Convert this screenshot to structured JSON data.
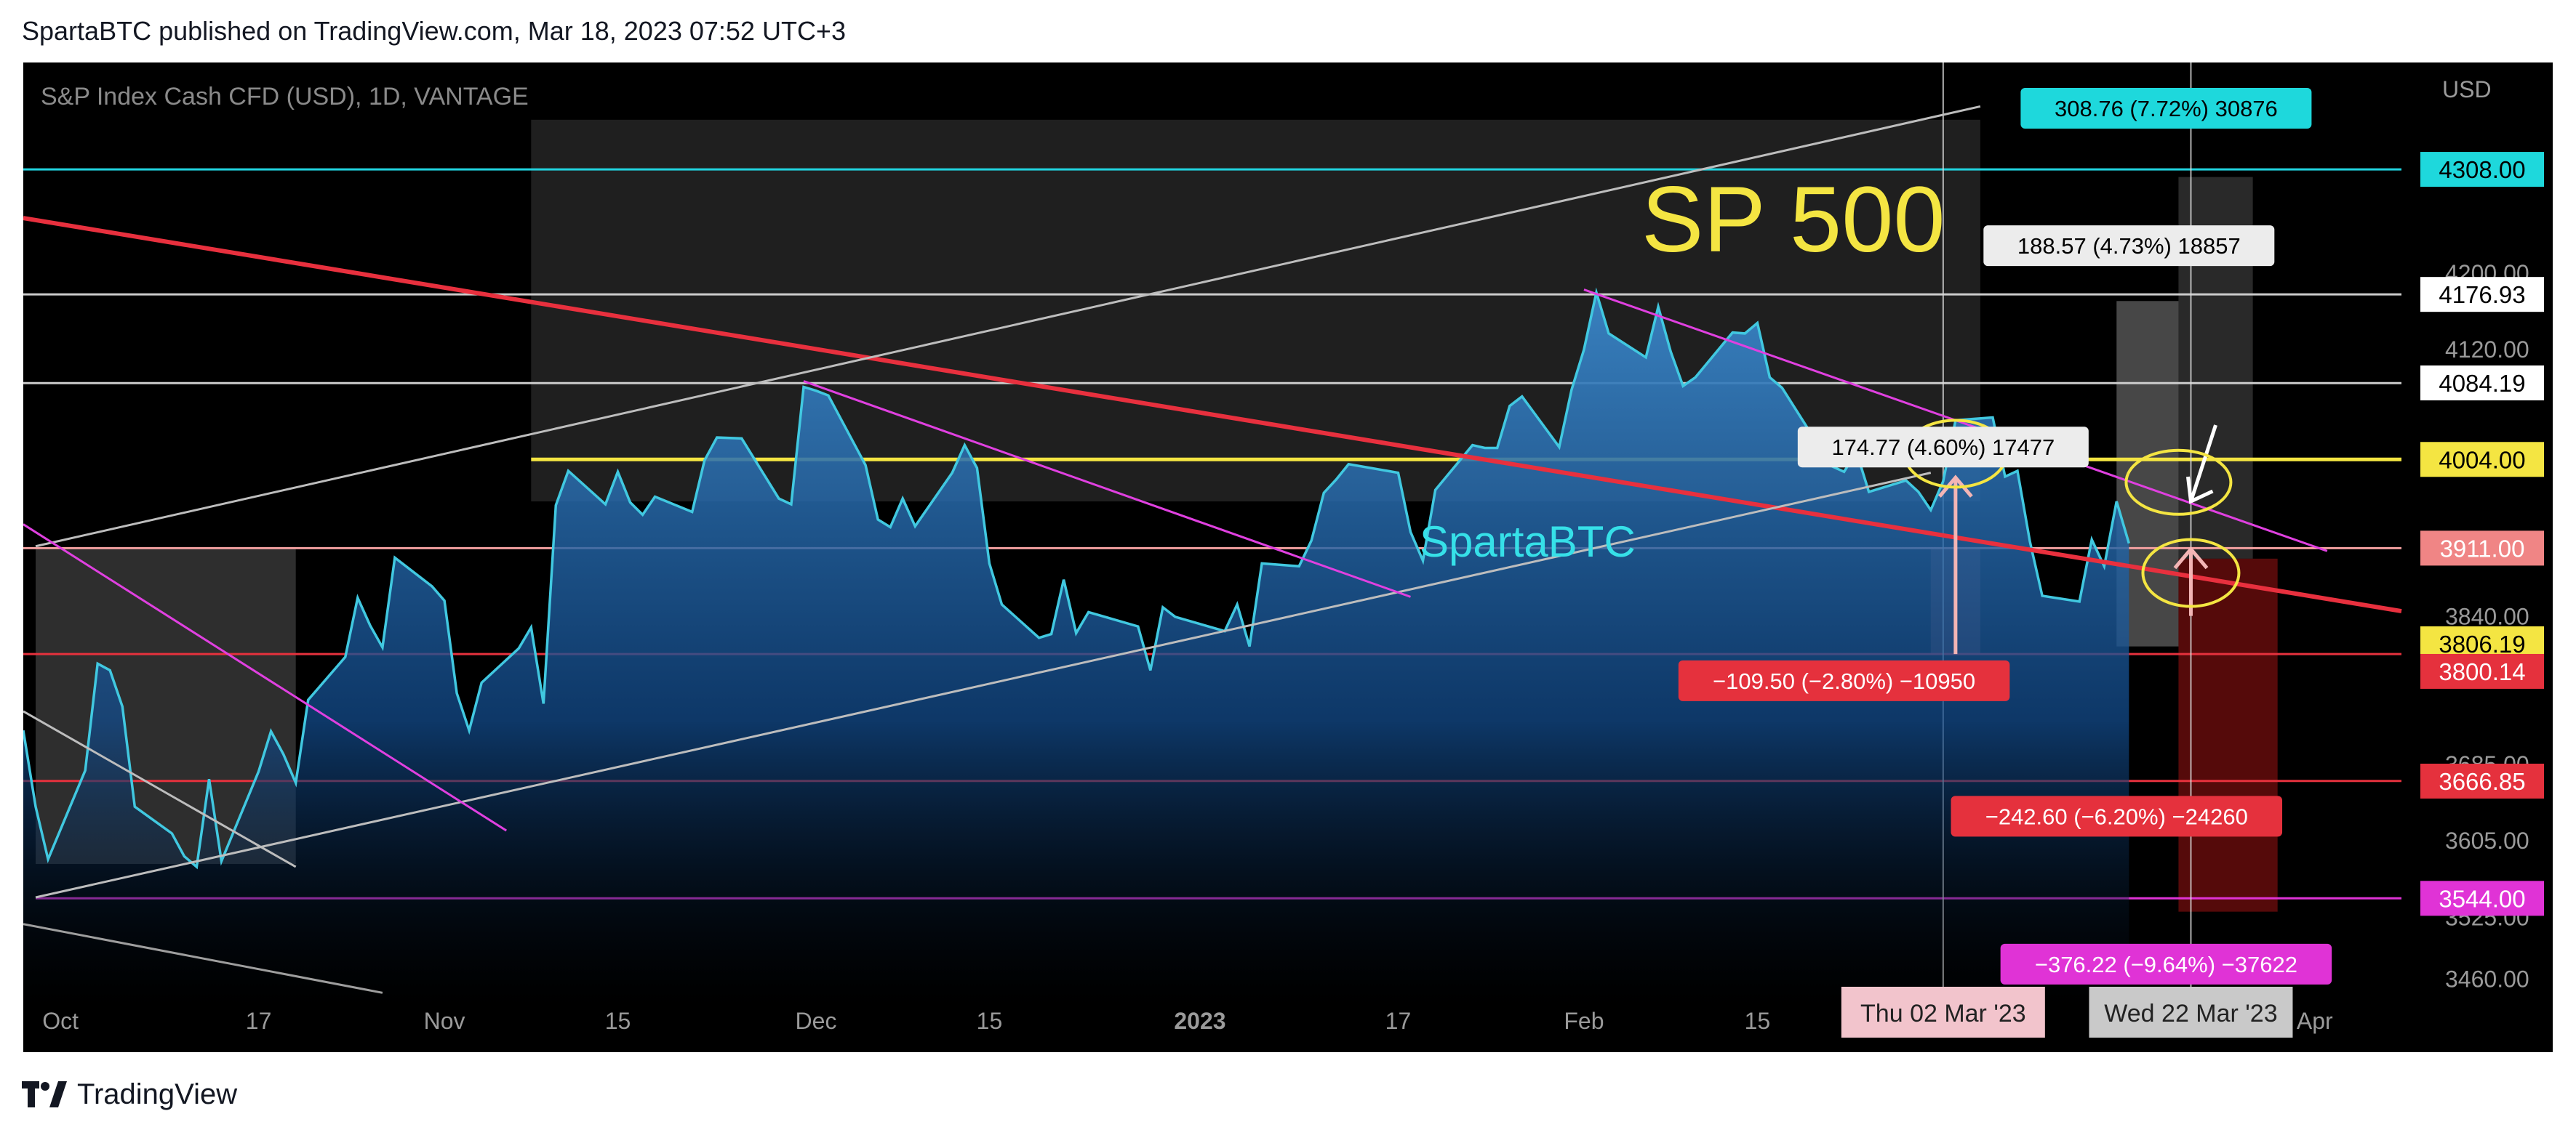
{
  "header": {
    "published": "SpartaBTC published on TradingView.com, Mar 18, 2023 07:52 UTC+3"
  },
  "footer": {
    "brand": "TradingView",
    "logo_icon": "tradingview-logo-icon"
  },
  "chart_data": {
    "type": "area",
    "title": "S&P Index Cash CFD (USD), 1D, VANTAGE",
    "currency": "USD",
    "watermark_text": "SP 500",
    "author_text": "SpartaBTC",
    "colors": {
      "background": "#000000",
      "price_line": "#41c8e0",
      "area_fill": "#2f6fb0",
      "channel": "#bdbdbd",
      "red_trend": "#e8303e",
      "yellow_line": "#f4e542",
      "pink_line": "#e040e0",
      "cyan_line": "#21d4e0"
    },
    "xlim": [
      "2022-09-28",
      "2023-04-08"
    ],
    "ylim": [
      3430,
      4420
    ],
    "x_ticks": [
      {
        "date": "2022-10-01",
        "label": "Oct"
      },
      {
        "date": "2022-10-17",
        "label": "17"
      },
      {
        "date": "2022-11-01",
        "label": "Nov"
      },
      {
        "date": "2022-11-15",
        "label": "15"
      },
      {
        "date": "2022-12-01",
        "label": "Dec"
      },
      {
        "date": "2022-12-15",
        "label": "15"
      },
      {
        "date": "2023-01-01",
        "label": "2023"
      },
      {
        "date": "2023-01-17",
        "label": "17"
      },
      {
        "date": "2023-02-01",
        "label": "Feb"
      },
      {
        "date": "2023-02-15",
        "label": "15"
      },
      {
        "date": "2023-04-01",
        "label": "Apr"
      }
    ],
    "date_badges": [
      {
        "date": "2023-03-02",
        "label": "Thu 02 Mar '23",
        "bg": "#f2c4cc",
        "fg": "#222222"
      },
      {
        "date": "2023-03-22",
        "label": "Wed 22 Mar '23",
        "bg": "#c9c9c9",
        "fg": "#222222"
      }
    ],
    "y_ticks": [
      {
        "value": 4200,
        "label": "4200.00"
      },
      {
        "value": 4120,
        "label": "4120.00"
      },
      {
        "value": 3840,
        "label": "3840.00"
      },
      {
        "value": 3685,
        "label": "3685.00"
      },
      {
        "value": 3605,
        "label": "3605.00"
      },
      {
        "value": 3525,
        "label": "3525.00"
      },
      {
        "value": 3460,
        "label": "3460.00"
      }
    ],
    "price_labels": [
      {
        "value": 4308.0,
        "label": "4308.00",
        "bg": "#1ed8dc",
        "fg": "#000000"
      },
      {
        "value": 4176.93,
        "label": "4176.93",
        "bg": "#ffffff",
        "fg": "#000000"
      },
      {
        "value": 4084.19,
        "label": "4084.19",
        "bg": "#ffffff",
        "fg": "#000000"
      },
      {
        "value": 4004.0,
        "label": "4004.00",
        "bg": "#f4e542",
        "fg": "#000000"
      },
      {
        "value": 3911.0,
        "label": "3911.00",
        "bg": "#f08585",
        "fg": "#ffffff"
      },
      {
        "value": 3806.19,
        "label": "3806.19",
        "bg": "#f4e542",
        "fg": "#000000"
      },
      {
        "value": 3800.14,
        "label": "3800.14",
        "bg": "#e5313d",
        "fg": "#ffffff"
      },
      {
        "value": 3666.85,
        "label": "3666.85",
        "bg": "#e5313d",
        "fg": "#ffffff"
      },
      {
        "value": 3544.0,
        "label": "3544.00",
        "bg": "#e033d6",
        "fg": "#ffffff"
      }
    ],
    "horizontal_lines": [
      {
        "value": 4308,
        "color": "#21d4e0",
        "start": "2022-09-28"
      },
      {
        "value": 4177,
        "color": "#cccccc",
        "start": "2022-09-28"
      },
      {
        "value": 4084,
        "color": "#cccccc",
        "start": "2022-09-28"
      },
      {
        "value": 4004,
        "color": "#f4e542",
        "start": "2022-11-08"
      },
      {
        "value": 3911,
        "color": "#f3a0a0",
        "start": "2022-09-28"
      },
      {
        "value": 3800,
        "color": "#e5313d",
        "start": "2022-09-28"
      },
      {
        "value": 3667,
        "color": "#e5313d",
        "start": "2022-09-28"
      },
      {
        "value": 3544,
        "color": "#e033d6",
        "start": "2022-09-29"
      }
    ],
    "trend_lines": [
      {
        "name": "red-downtrend",
        "color": "#e8303e",
        "from": [
          "2022-09-28",
          4257
        ],
        "to": [
          "2023-04-08",
          3845
        ]
      },
      {
        "name": "channel-upper",
        "color": "#bdbdbd",
        "from": [
          "2022-09-29",
          3913
        ],
        "to": [
          "2023-03-05",
          4374
        ]
      },
      {
        "name": "channel-lower",
        "color": "#bdbdbd",
        "from": [
          "2022-09-29",
          3545
        ],
        "to": [
          "2023-03-01",
          3990
        ]
      },
      {
        "name": "small-channel-lower",
        "color": "#bdbdbd",
        "from": [
          "2022-09-28",
          3740
        ],
        "to": [
          "2022-10-20",
          3577
        ]
      },
      {
        "name": "gray-bottom-line",
        "color": "#9e9e9e",
        "from": [
          "2022-09-28",
          3517
        ],
        "to": [
          "2022-10-27",
          3445
        ]
      },
      {
        "name": "pink-trend-1",
        "color": "#e040e0",
        "from": [
          "2022-09-28",
          3936
        ],
        "to": [
          "2022-11-06",
          3615
        ]
      },
      {
        "name": "pink-trend-2",
        "color": "#e040e0",
        "from": [
          "2022-11-30",
          4086
        ],
        "to": [
          "2023-01-18",
          3860
        ]
      },
      {
        "name": "pink-trend-3",
        "color": "#e040e0",
        "from": [
          "2023-02-01",
          4182
        ],
        "to": [
          "2023-04-02",
          3908
        ]
      }
    ],
    "shaded_boxes": [
      {
        "name": "channel-shade",
        "from": "2022-11-08",
        "to": "2023-03-05",
        "top": 4360,
        "bottom": 3960,
        "color": "rgba(255,255,255,0.12)"
      },
      {
        "name": "oct-box",
        "from": "2022-09-29",
        "to": "2022-10-20",
        "top": 3910,
        "bottom": 3580,
        "color": "rgba(255,255,255,0.18)"
      },
      {
        "name": "loss-box-mar",
        "from": "2023-03-01",
        "to": "2023-03-05",
        "top": 3910,
        "bottom": 3800,
        "color": "rgba(240,120,120,0.28)"
      },
      {
        "name": "gain-box-1",
        "from": "2023-03-16",
        "to": "2023-03-21",
        "top": 4170,
        "bottom": 3808,
        "color": "rgba(255,255,255,0.28)"
      },
      {
        "name": "gain-box-2",
        "from": "2023-03-21",
        "to": "2023-03-27",
        "top": 4300,
        "bottom": 3900,
        "color": "rgba(255,255,255,0.16)"
      },
      {
        "name": "risk-box",
        "from": "2023-03-21",
        "to": "2023-03-29",
        "top": 3900,
        "bottom": 3530,
        "color": "rgba(170,20,20,0.5)"
      }
    ],
    "measure_labels": [
      {
        "label": "308.76 (7.72%) 30876",
        "date": "2023-03-20",
        "value": 4372,
        "bg": "#1ed8dc",
        "fg": "#000000"
      },
      {
        "label": "188.57 (4.73%) 18857",
        "date": "2023-03-17",
        "value": 4228,
        "bg": "#ececec",
        "fg": "#000000"
      },
      {
        "label": "174.77 (4.60%) 17477",
        "date": "2023-03-02",
        "value": 4017,
        "bg": "#ececec",
        "fg": "#000000"
      },
      {
        "label": "−109.50 (−2.80%) −10950",
        "date": "2023-02-22",
        "value": 3772,
        "bg": "#e5313d",
        "fg": "#ffffff"
      },
      {
        "label": "−242.60 (−6.20%) −24260",
        "date": "2023-03-16",
        "value": 3630,
        "bg": "#e5313d",
        "fg": "#ffffff"
      },
      {
        "label": "−376.22 (−9.64%) −37622",
        "date": "2023-03-20",
        "value": 3475,
        "bg": "#e033d6",
        "fg": "#ffffff"
      }
    ],
    "series": [
      {
        "name": "",
        "points": [
          [
            "2022-09-28",
            3720
          ],
          [
            "2022-09-29",
            3640
          ],
          [
            "2022-09-30",
            3585
          ],
          [
            "2022-10-03",
            3678
          ],
          [
            "2022-10-04",
            3790
          ],
          [
            "2022-10-05",
            3783
          ],
          [
            "2022-10-06",
            3745
          ],
          [
            "2022-10-07",
            3640
          ],
          [
            "2022-10-10",
            3612
          ],
          [
            "2022-10-11",
            3588
          ],
          [
            "2022-10-12",
            3577
          ],
          [
            "2022-10-13",
            3669
          ],
          [
            "2022-10-14",
            3583
          ],
          [
            "2022-10-17",
            3677
          ],
          [
            "2022-10-18",
            3719
          ],
          [
            "2022-10-19",
            3695
          ],
          [
            "2022-10-20",
            3665
          ],
          [
            "2022-10-21",
            3752
          ],
          [
            "2022-10-24",
            3797
          ],
          [
            "2022-10-25",
            3859
          ],
          [
            "2022-10-26",
            3830
          ],
          [
            "2022-10-27",
            3807
          ],
          [
            "2022-10-28",
            3901
          ],
          [
            "2022-10-31",
            3871
          ],
          [
            "2022-11-01",
            3856
          ],
          [
            "2022-11-02",
            3759
          ],
          [
            "2022-11-03",
            3720
          ],
          [
            "2022-11-04",
            3770
          ],
          [
            "2022-11-07",
            3806
          ],
          [
            "2022-11-08",
            3828
          ],
          [
            "2022-11-09",
            3748
          ],
          [
            "2022-11-10",
            3956
          ],
          [
            "2022-11-11",
            3992
          ],
          [
            "2022-11-14",
            3957
          ],
          [
            "2022-11-15",
            3991
          ],
          [
            "2022-11-16",
            3959
          ],
          [
            "2022-11-17",
            3946
          ],
          [
            "2022-11-18",
            3965
          ],
          [
            "2022-11-21",
            3949
          ],
          [
            "2022-11-22",
            4003
          ],
          [
            "2022-11-23",
            4027
          ],
          [
            "2022-11-25",
            4026
          ],
          [
            "2022-11-28",
            3963
          ],
          [
            "2022-11-29",
            3957
          ],
          [
            "2022-11-30",
            4080
          ],
          [
            "2022-12-01",
            4076
          ],
          [
            "2022-12-02",
            4071
          ],
          [
            "2022-12-05",
            3998
          ],
          [
            "2022-12-06",
            3941
          ],
          [
            "2022-12-07",
            3933
          ],
          [
            "2022-12-08",
            3963
          ],
          [
            "2022-12-09",
            3934
          ],
          [
            "2022-12-12",
            3990
          ],
          [
            "2022-12-13",
            4019
          ],
          [
            "2022-12-14",
            3995
          ],
          [
            "2022-12-15",
            3895
          ],
          [
            "2022-12-16",
            3852
          ],
          [
            "2022-12-19",
            3817
          ],
          [
            "2022-12-20",
            3821
          ],
          [
            "2022-12-21",
            3878
          ],
          [
            "2022-12-22",
            3822
          ],
          [
            "2022-12-23",
            3844
          ],
          [
            "2022-12-27",
            3829
          ],
          [
            "2022-12-28",
            3783
          ],
          [
            "2022-12-29",
            3849
          ],
          [
            "2022-12-30",
            3839
          ],
          [
            "2023-01-03",
            3824
          ],
          [
            "2023-01-04",
            3852
          ],
          [
            "2023-01-05",
            3808
          ],
          [
            "2023-01-06",
            3895
          ],
          [
            "2023-01-09",
            3892
          ],
          [
            "2023-01-10",
            3919
          ],
          [
            "2023-01-11",
            3969
          ],
          [
            "2023-01-12",
            3983
          ],
          [
            "2023-01-13",
            3999
          ],
          [
            "2023-01-17",
            3990
          ],
          [
            "2023-01-18",
            3928
          ],
          [
            "2023-01-19",
            3898
          ],
          [
            "2023-01-20",
            3972
          ],
          [
            "2023-01-23",
            4019
          ],
          [
            "2023-01-24",
            4016
          ],
          [
            "2023-01-25",
            4016
          ],
          [
            "2023-01-26",
            4060
          ],
          [
            "2023-01-27",
            4070
          ],
          [
            "2023-01-30",
            4017
          ],
          [
            "2023-01-31",
            4077
          ],
          [
            "2023-02-01",
            4119
          ],
          [
            "2023-02-02",
            4179
          ],
          [
            "2023-02-03",
            4136
          ],
          [
            "2023-02-06",
            4111
          ],
          [
            "2023-02-07",
            4164
          ],
          [
            "2023-02-08",
            4117
          ],
          [
            "2023-02-09",
            4081
          ],
          [
            "2023-02-10",
            4090
          ],
          [
            "2023-02-13",
            4137
          ],
          [
            "2023-02-14",
            4136
          ],
          [
            "2023-02-15",
            4147
          ],
          [
            "2023-02-16",
            4090
          ],
          [
            "2023-02-17",
            4079
          ],
          [
            "2023-02-21",
            3997
          ],
          [
            "2023-02-22",
            3991
          ],
          [
            "2023-02-23",
            4012
          ],
          [
            "2023-02-24",
            3970
          ],
          [
            "2023-02-27",
            3982
          ],
          [
            "2023-02-28",
            3970
          ],
          [
            "2023-03-01",
            3951
          ],
          [
            "2023-03-02",
            3981
          ],
          [
            "2023-03-03",
            4045
          ],
          [
            "2023-03-06",
            4048
          ],
          [
            "2023-03-07",
            3986
          ],
          [
            "2023-03-08",
            3992
          ],
          [
            "2023-03-09",
            3918
          ],
          [
            "2023-03-10",
            3861
          ],
          [
            "2023-03-13",
            3855
          ],
          [
            "2023-03-14",
            3920
          ],
          [
            "2023-03-15",
            3892
          ],
          [
            "2023-03-16",
            3960
          ],
          [
            "2023-03-17",
            3916
          ]
        ]
      }
    ]
  }
}
